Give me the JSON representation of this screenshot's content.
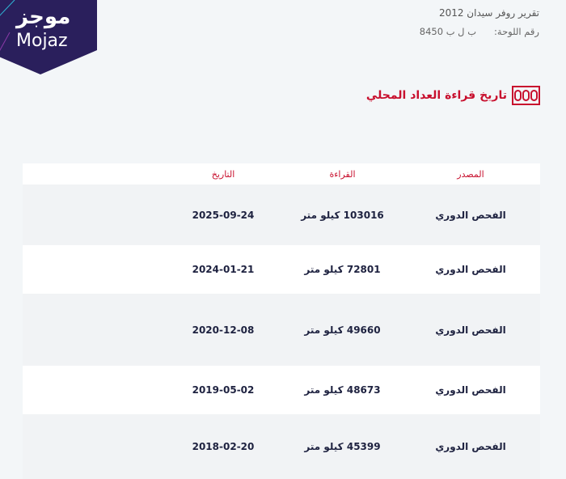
{
  "logo": {
    "arabic": "موجز",
    "english": "Mojaz",
    "color": "#2a1f5c"
  },
  "header": {
    "report_title": "تقرير روفر سيدان 2012",
    "plate_label": "رقم اللوحة:",
    "plate_value": "ب ل ب 8450"
  },
  "section": {
    "title": "تاريخ قراءة العداد المحلي",
    "icon": "odometer-icon",
    "accent": "#c8102e"
  },
  "table": {
    "headers": {
      "source": "المصدر",
      "reading": "القراءة",
      "date": "التاريخ"
    },
    "rows": [
      {
        "source": "الفحص الدوري",
        "reading": "103016 كيلو متر",
        "date": "2025-09-24"
      },
      {
        "source": "الفحص الدوري",
        "reading": "72801 كيلو متر",
        "date": "2024-01-21"
      },
      {
        "source": "الفحص الدوري",
        "reading": "49660 كيلو متر",
        "date": "2020-12-08"
      },
      {
        "source": "الفحص الدوري",
        "reading": "48673 كيلو متر",
        "date": "2019-05-02"
      },
      {
        "source": "الفحص الدوري",
        "reading": "45399 كيلو متر",
        "date": "2018-02-20"
      }
    ]
  }
}
